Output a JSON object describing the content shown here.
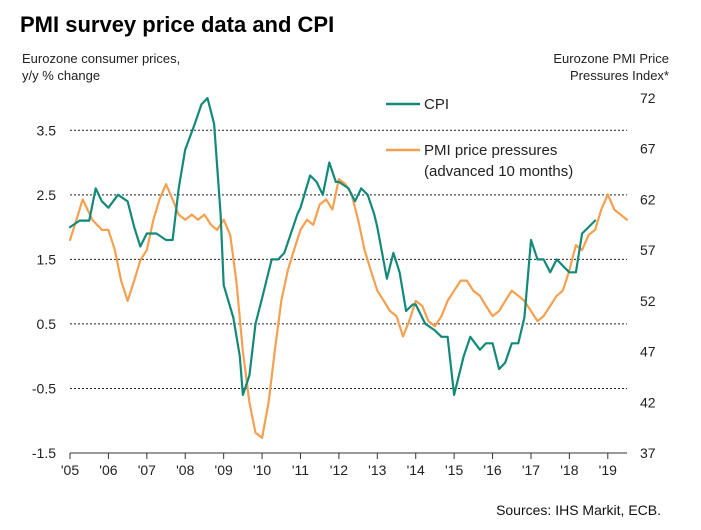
{
  "title": "PMI survey price data and CPI",
  "left_axis_title": [
    "Eurozone consumer prices,",
    "y/y % change"
  ],
  "right_axis_title": [
    "Eurozone PMI  Price",
    "Pressures Index*"
  ],
  "source": "Sources: IHS Markit, ECB.",
  "colors": {
    "cpi": "#13897a",
    "pmi": "#f5a050",
    "grid": "#222222"
  },
  "chart_data": {
    "type": "line",
    "title": "PMI survey price data and CPI",
    "x_ticks": [
      "'05",
      "'06",
      "'07",
      "'08",
      "'09",
      "'10",
      "'11",
      "'12",
      "'13",
      "'14",
      "'15",
      "'16",
      "'17",
      "'18",
      "'19"
    ],
    "x_range": [
      2005.0,
      2019.5
    ],
    "y_left": {
      "label": "Eurozone consumer prices, y/y % change",
      "range": [
        -1.5,
        4.0
      ],
      "ticks": [
        "-1.5",
        "-0.5",
        "0.5",
        "1.5",
        "2.5",
        "3.5"
      ]
    },
    "y_right": {
      "label": "Eurozone PMI  Price Pressures Index*",
      "range": [
        37,
        72
      ],
      "ticks": [
        "37",
        "42",
        "47",
        "52",
        "57",
        "62",
        "67",
        "72"
      ]
    },
    "grid_lines_at_left": [
      -0.5,
      0.5,
      1.5,
      2.5,
      3.5
    ],
    "legend": {
      "position": "top-center",
      "entries": [
        "CPI",
        "PMI price pressures",
        "(advanced 10 months)"
      ]
    },
    "series": [
      {
        "name": "CPI",
        "axis": "left",
        "points": [
          [
            2005.0,
            2.0
          ],
          [
            2005.25,
            2.1
          ],
          [
            2005.5,
            2.1
          ],
          [
            2005.67,
            2.6
          ],
          [
            2005.83,
            2.4
          ],
          [
            2006.0,
            2.3
          ],
          [
            2006.25,
            2.5
          ],
          [
            2006.5,
            2.4
          ],
          [
            2006.67,
            2.0
          ],
          [
            2006.83,
            1.7
          ],
          [
            2007.0,
            1.9
          ],
          [
            2007.25,
            1.9
          ],
          [
            2007.5,
            1.8
          ],
          [
            2007.67,
            1.8
          ],
          [
            2007.83,
            2.6
          ],
          [
            2008.0,
            3.2
          ],
          [
            2008.25,
            3.6
          ],
          [
            2008.42,
            3.9
          ],
          [
            2008.58,
            4.0
          ],
          [
            2008.75,
            3.6
          ],
          [
            2008.92,
            2.2
          ],
          [
            2009.0,
            1.1
          ],
          [
            2009.25,
            0.6
          ],
          [
            2009.42,
            0.0
          ],
          [
            2009.5,
            -0.6
          ],
          [
            2009.67,
            -0.3
          ],
          [
            2009.83,
            0.5
          ],
          [
            2010.0,
            0.9
          ],
          [
            2010.25,
            1.5
          ],
          [
            2010.42,
            1.5
          ],
          [
            2010.58,
            1.6
          ],
          [
            2010.75,
            1.9
          ],
          [
            2010.92,
            2.2
          ],
          [
            2011.0,
            2.3
          ],
          [
            2011.25,
            2.8
          ],
          [
            2011.42,
            2.7
          ],
          [
            2011.58,
            2.5
          ],
          [
            2011.75,
            3.0
          ],
          [
            2011.92,
            2.7
          ],
          [
            2012.0,
            2.7
          ],
          [
            2012.25,
            2.6
          ],
          [
            2012.42,
            2.4
          ],
          [
            2012.58,
            2.6
          ],
          [
            2012.75,
            2.5
          ],
          [
            2012.92,
            2.2
          ],
          [
            2013.0,
            2.0
          ],
          [
            2013.25,
            1.2
          ],
          [
            2013.42,
            1.6
          ],
          [
            2013.58,
            1.3
          ],
          [
            2013.75,
            0.7
          ],
          [
            2013.92,
            0.8
          ],
          [
            2014.0,
            0.8
          ],
          [
            2014.25,
            0.5
          ],
          [
            2014.5,
            0.4
          ],
          [
            2014.67,
            0.3
          ],
          [
            2014.83,
            0.3
          ],
          [
            2015.0,
            -0.6
          ],
          [
            2015.25,
            0.0
          ],
          [
            2015.42,
            0.3
          ],
          [
            2015.67,
            0.1
          ],
          [
            2015.83,
            0.2
          ],
          [
            2016.0,
            0.2
          ],
          [
            2016.17,
            -0.2
          ],
          [
            2016.33,
            -0.1
          ],
          [
            2016.5,
            0.2
          ],
          [
            2016.67,
            0.2
          ],
          [
            2016.83,
            0.6
          ],
          [
            2017.0,
            1.8
          ],
          [
            2017.17,
            1.5
          ],
          [
            2017.33,
            1.5
          ],
          [
            2017.5,
            1.3
          ],
          [
            2017.67,
            1.5
          ],
          [
            2017.83,
            1.4
          ],
          [
            2018.0,
            1.3
          ],
          [
            2018.17,
            1.3
          ],
          [
            2018.33,
            1.9
          ],
          [
            2018.5,
            2.0
          ],
          [
            2018.67,
            2.1
          ]
        ]
      },
      {
        "name": "PMI price pressures",
        "axis": "right",
        "points": [
          [
            2005.0,
            58.0
          ],
          [
            2005.17,
            60.0
          ],
          [
            2005.33,
            62.0
          ],
          [
            2005.58,
            60.0
          ],
          [
            2005.83,
            59.0
          ],
          [
            2006.0,
            59.0
          ],
          [
            2006.17,
            57.0
          ],
          [
            2006.33,
            54.0
          ],
          [
            2006.5,
            52.0
          ],
          [
            2006.67,
            54.0
          ],
          [
            2006.83,
            56.0
          ],
          [
            2007.0,
            57.0
          ],
          [
            2007.17,
            60.0
          ],
          [
            2007.33,
            62.0
          ],
          [
            2007.5,
            63.5
          ],
          [
            2007.67,
            62.0
          ],
          [
            2007.83,
            60.5
          ],
          [
            2008.0,
            60.0
          ],
          [
            2008.17,
            60.5
          ],
          [
            2008.33,
            60.0
          ],
          [
            2008.5,
            60.5
          ],
          [
            2008.67,
            59.5
          ],
          [
            2008.83,
            59.0
          ],
          [
            2009.0,
            60.0
          ],
          [
            2009.17,
            58.5
          ],
          [
            2009.33,
            54.0
          ],
          [
            2009.5,
            47.0
          ],
          [
            2009.67,
            42.0
          ],
          [
            2009.83,
            39.0
          ],
          [
            2010.0,
            38.5
          ],
          [
            2010.17,
            42.0
          ],
          [
            2010.33,
            47.0
          ],
          [
            2010.5,
            52.0
          ],
          [
            2010.67,
            55.0
          ],
          [
            2010.83,
            57.0
          ],
          [
            2011.0,
            59.0
          ],
          [
            2011.17,
            60.0
          ],
          [
            2011.33,
            59.5
          ],
          [
            2011.5,
            61.5
          ],
          [
            2011.67,
            62.0
          ],
          [
            2011.83,
            61.0
          ],
          [
            2012.0,
            64.0
          ],
          [
            2012.17,
            63.5
          ],
          [
            2012.33,
            62.5
          ],
          [
            2012.5,
            60.0
          ],
          [
            2012.67,
            57.0
          ],
          [
            2012.83,
            55.0
          ],
          [
            2013.0,
            53.0
          ],
          [
            2013.17,
            52.0
          ],
          [
            2013.33,
            51.0
          ],
          [
            2013.5,
            50.5
          ],
          [
            2013.67,
            48.5
          ],
          [
            2013.83,
            50.0
          ],
          [
            2014.0,
            52.0
          ],
          [
            2014.17,
            51.5
          ],
          [
            2014.33,
            50.0
          ],
          [
            2014.5,
            49.5
          ],
          [
            2014.67,
            50.5
          ],
          [
            2014.83,
            52.0
          ],
          [
            2015.0,
            53.0
          ],
          [
            2015.17,
            54.0
          ],
          [
            2015.33,
            54.0
          ],
          [
            2015.5,
            53.0
          ],
          [
            2015.67,
            52.5
          ],
          [
            2015.83,
            51.5
          ],
          [
            2016.0,
            50.5
          ],
          [
            2016.17,
            51.0
          ],
          [
            2016.33,
            52.0
          ],
          [
            2016.5,
            53.0
          ],
          [
            2016.67,
            52.5
          ],
          [
            2016.83,
            52.0
          ],
          [
            2017.0,
            51.0
          ],
          [
            2017.17,
            50.0
          ],
          [
            2017.33,
            50.5
          ],
          [
            2017.5,
            51.5
          ],
          [
            2017.67,
            52.5
          ],
          [
            2017.83,
            53.0
          ],
          [
            2018.0,
            55.0
          ],
          [
            2018.17,
            57.5
          ],
          [
            2018.33,
            57.0
          ],
          [
            2018.5,
            58.5
          ],
          [
            2018.67,
            59.0
          ],
          [
            2018.83,
            61.0
          ],
          [
            2019.0,
            62.5
          ],
          [
            2019.17,
            61.0
          ],
          [
            2019.33,
            60.5
          ],
          [
            2019.5,
            60.0
          ]
        ]
      }
    ]
  }
}
